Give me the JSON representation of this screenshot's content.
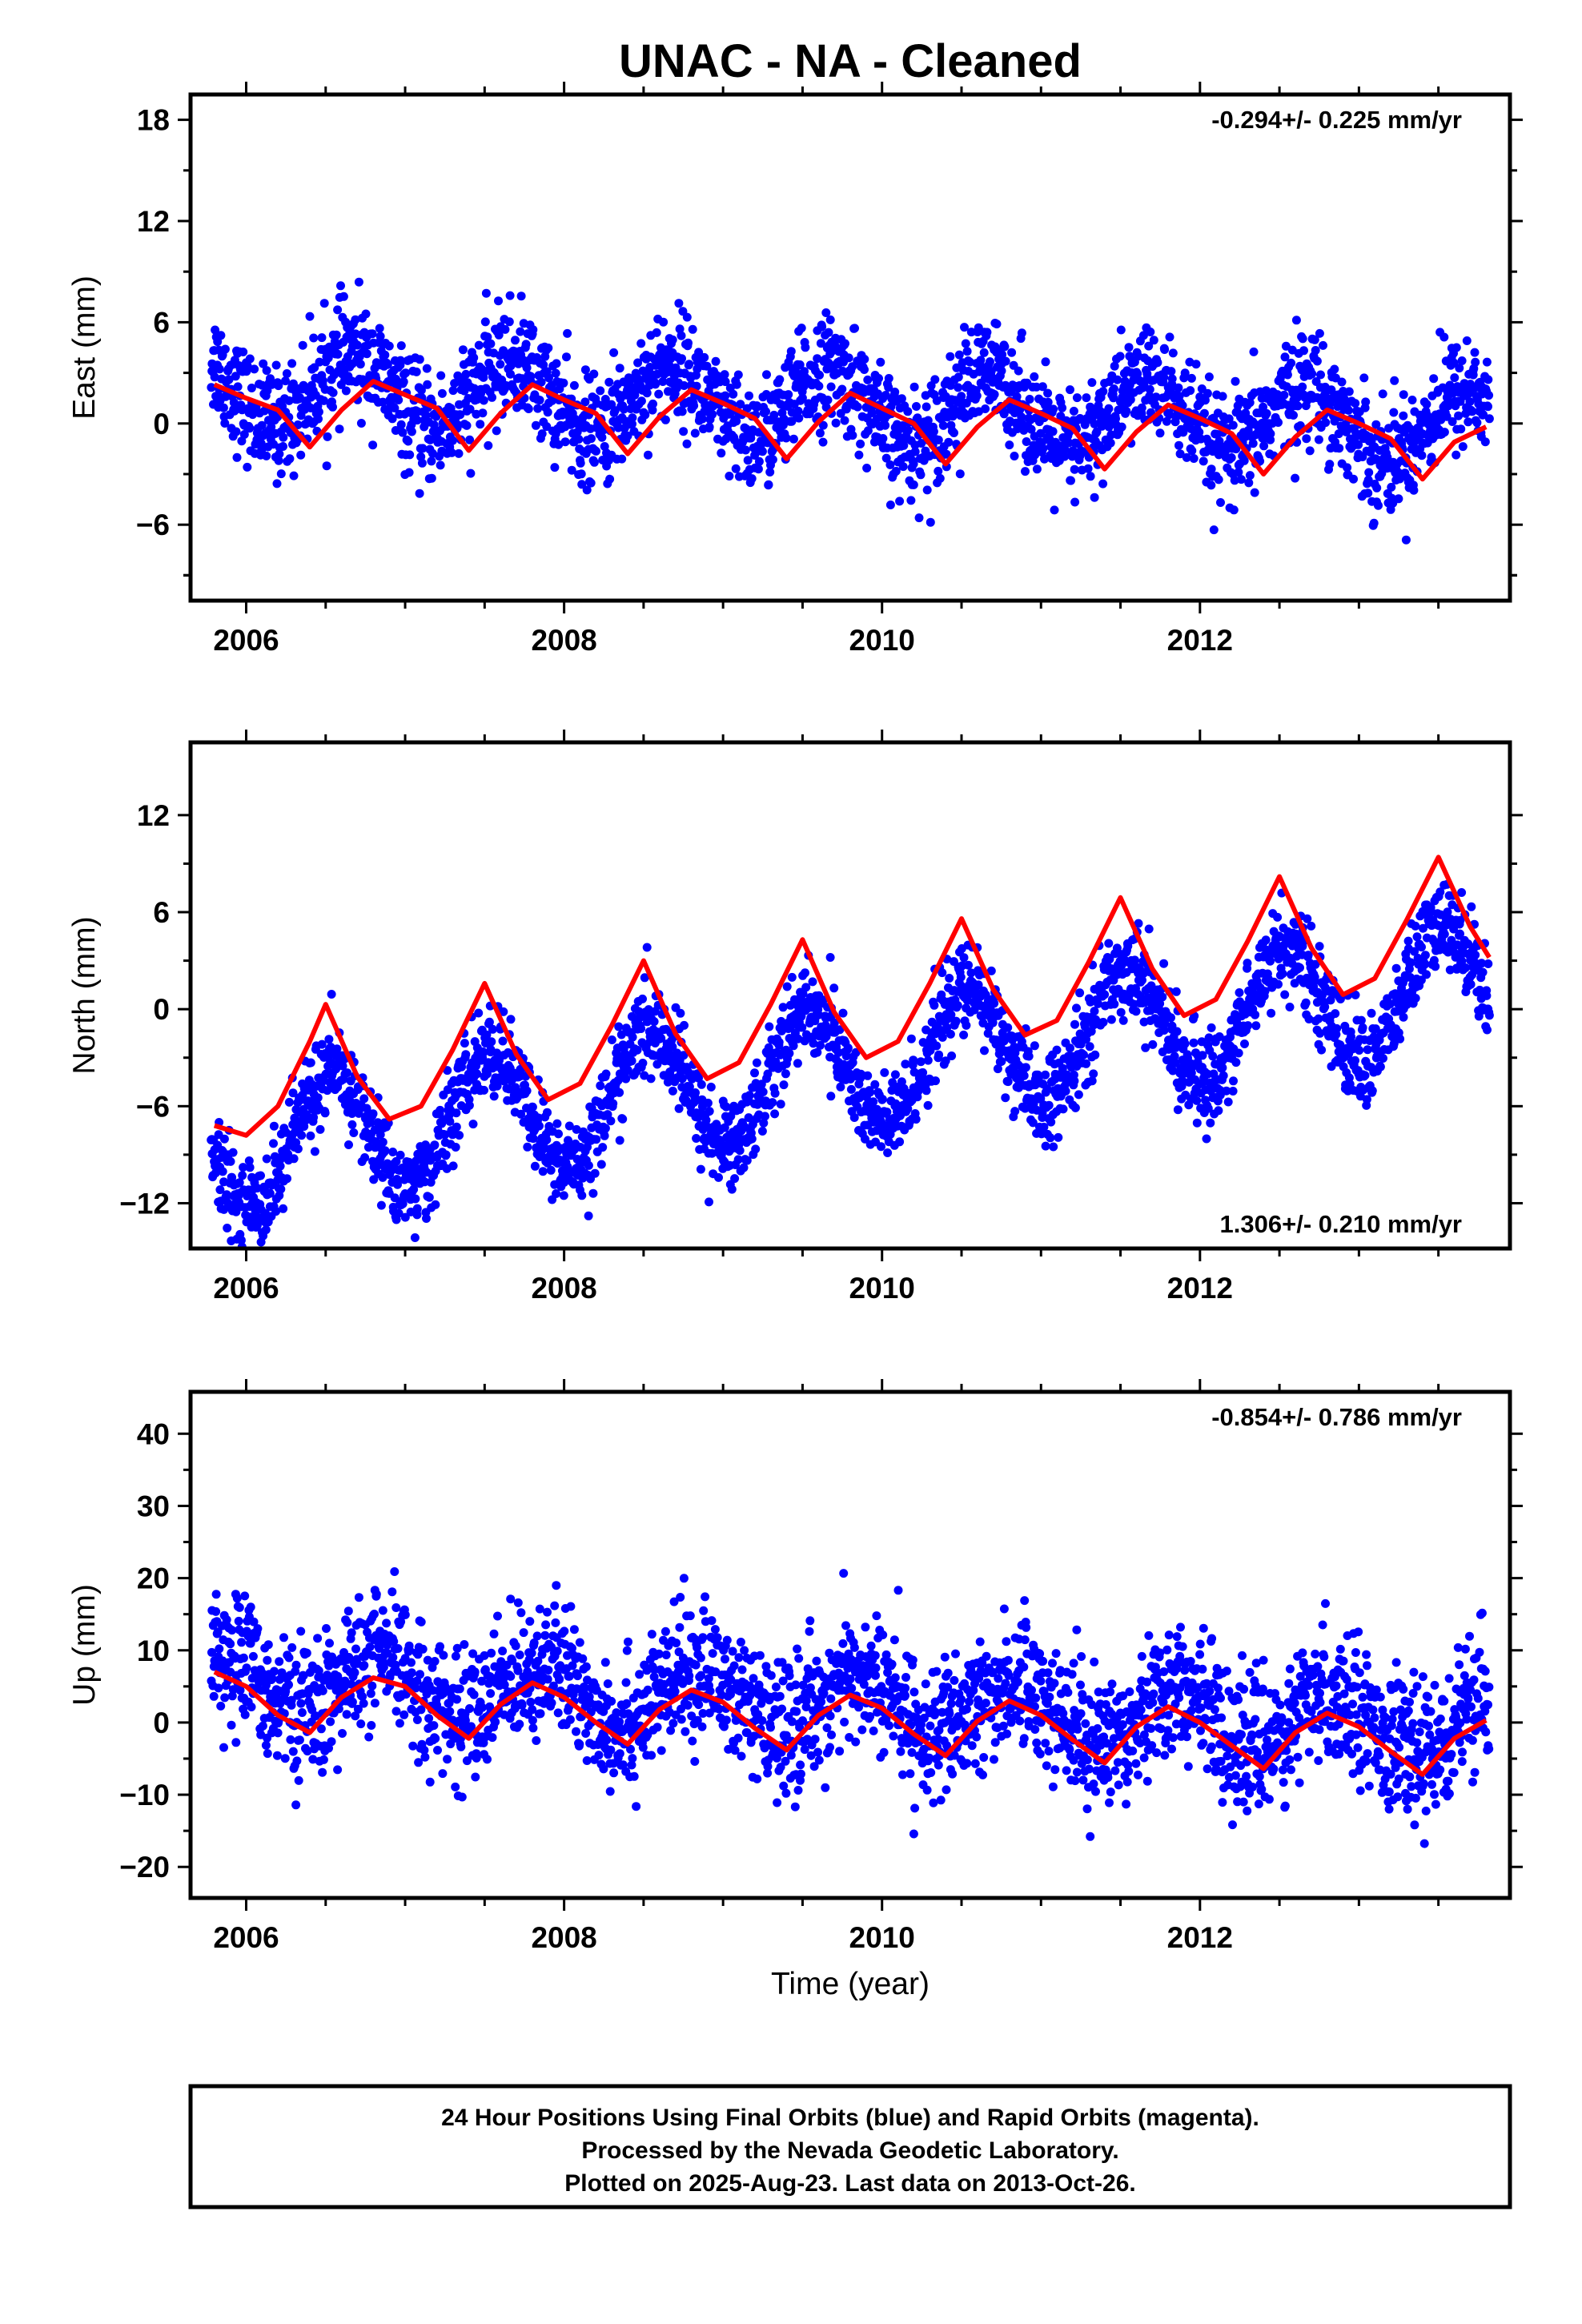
{
  "title": "UNAC  - NA - Cleaned",
  "footer": {
    "line1": "24 Hour Positions Using Final Orbits (blue) and Rapid Orbits (magenta).",
    "line2": "Processed by the Nevada Geodetic Laboratory.",
    "line3": "Plotted on 2025-Aug-23. Last data on 2013-Oct-26."
  },
  "colors": {
    "points": "#0000ff",
    "fit": "#ff0000",
    "frame": "#000000",
    "background": "#ffffff"
  },
  "chart_data": [
    {
      "type": "scatter",
      "ylabel": "East (mm)",
      "xlabel": "",
      "xlim": [
        2005.65,
        2013.95
      ],
      "ylim": [
        -10.5,
        19.5
      ],
      "xticks": [
        2006,
        2008,
        2010,
        2012
      ],
      "xtick_labels": [
        "2006",
        "2008",
        "2010",
        "2012"
      ],
      "yticks": [
        -6,
        0,
        6,
        12,
        18
      ],
      "ytick_labels": [
        "−6",
        "0",
        "6",
        "12",
        "18"
      ],
      "rate_label": "-0.294+/- 0.225 mm/yr",
      "rate_position": "top-right",
      "series": [
        {
          "kind": "daily-positions",
          "x_start": 2005.78,
          "x_end": 2013.82,
          "trend_intercept_mm": 1.0,
          "rate_mm_per_yr": -0.294,
          "annual_amplitude_mm": 2.1,
          "annual_phase_year_offset": 0.67,
          "scatter_std_mm": 1.6
        },
        {
          "kind": "fit",
          "x": [
            2005.8,
            2006.0,
            2006.2,
            2006.4,
            2006.6,
            2006.8,
            2007.0,
            2007.2,
            2007.4,
            2007.6,
            2007.8,
            2008.0,
            2008.2,
            2008.4,
            2008.6,
            2008.8,
            2009.0,
            2009.2,
            2009.4,
            2009.6,
            2009.8,
            2010.0,
            2010.2,
            2010.4,
            2010.6,
            2010.8,
            2011.0,
            2011.2,
            2011.4,
            2011.6,
            2011.8,
            2012.0,
            2012.2,
            2012.4,
            2012.6,
            2012.8,
            2013.0,
            2013.2,
            2013.4,
            2013.6,
            2013.8
          ],
          "y": [
            2.3,
            1.5,
            0.8,
            -1.4,
            0.8,
            2.5,
            1.7,
            0.9,
            -1.6,
            0.6,
            2.3,
            1.4,
            0.6,
            -1.8,
            0.4,
            2.0,
            1.2,
            0.3,
            -2.1,
            0.1,
            1.8,
            0.9,
            0.0,
            -2.4,
            -0.2,
            1.4,
            0.6,
            -0.3,
            -2.7,
            -0.5,
            1.1,
            0.3,
            -0.6,
            -3.0,
            -0.8,
            0.8,
            0.0,
            -0.9,
            -3.3,
            -1.1,
            -0.2
          ]
        }
      ]
    },
    {
      "type": "scatter",
      "ylabel": "North (mm)",
      "xlabel": "",
      "xlim": [
        2005.65,
        2013.95
      ],
      "ylim": [
        -14.8,
        16.5
      ],
      "xticks": [
        2006,
        2008,
        2010,
        2012
      ],
      "xtick_labels": [
        "2006",
        "2008",
        "2010",
        "2012"
      ],
      "yticks": [
        -12,
        -6,
        0,
        6,
        12
      ],
      "ytick_labels": [
        "−12",
        "−6",
        "0",
        "6",
        "12"
      ],
      "rate_label": "1.306+/- 0.210 mm/yr",
      "rate_position": "bottom-right",
      "series": [
        {
          "kind": "daily-positions",
          "x_start": 2005.78,
          "x_end": 2013.82,
          "trend_intercept_mm": -3.6,
          "rate_mm_per_yr": 1.306,
          "annual_amplitude_mm": 3.8,
          "annual_phase_year_offset": 0.53,
          "scatter_std_mm": 1.4
        },
        {
          "kind": "fit",
          "x": [
            2005.8,
            2006.0,
            2006.2,
            2006.4,
            2006.5,
            2006.7,
            2006.9,
            2007.1,
            2007.3,
            2007.5,
            2007.7,
            2007.9,
            2008.1,
            2008.3,
            2008.5,
            2008.7,
            2008.9,
            2009.1,
            2009.3,
            2009.5,
            2009.7,
            2009.9,
            2010.1,
            2010.3,
            2010.5,
            2010.7,
            2010.9,
            2011.1,
            2011.3,
            2011.5,
            2011.7,
            2011.9,
            2012.1,
            2012.3,
            2012.5,
            2012.7,
            2012.9,
            2013.1,
            2013.3,
            2013.5,
            2013.7,
            2013.82
          ],
          "y": [
            -7.2,
            -7.8,
            -6.0,
            -2.0,
            0.3,
            -4.2,
            -6.8,
            -6.0,
            -2.5,
            1.6,
            -2.8,
            -5.6,
            -4.6,
            -1.0,
            3.0,
            -1.5,
            -4.3,
            -3.3,
            0.3,
            4.3,
            -0.2,
            -3.0,
            -2.0,
            1.6,
            5.6,
            1.2,
            -1.6,
            -0.7,
            2.9,
            6.9,
            2.5,
            -0.4,
            0.6,
            4.2,
            8.2,
            3.8,
            0.9,
            1.9,
            5.5,
            9.4,
            5.1,
            3.2
          ]
        }
      ]
    },
    {
      "type": "scatter",
      "ylabel": "Up (mm)",
      "xlabel": "Time (year)",
      "xlim": [
        2005.65,
        2013.95
      ],
      "ylim": [
        -24.3,
        45.8
      ],
      "xticks": [
        2006,
        2008,
        2010,
        2012
      ],
      "xtick_labels": [
        "2006",
        "2008",
        "2010",
        "2012"
      ],
      "yticks": [
        -20,
        -10,
        0,
        10,
        20,
        30,
        40
      ],
      "ytick_labels": [
        "−20",
        "−10",
        "0",
        "10",
        "20",
        "30",
        "40"
      ],
      "rate_label": "-0.854+/- 0.786 mm/yr",
      "rate_position": "top-right",
      "series": [
        {
          "kind": "daily-positions",
          "x_start": 2005.78,
          "x_end": 2013.82,
          "trend_intercept_mm": 2.5,
          "rate_mm_per_yr": -0.854,
          "annual_amplitude_mm": 3.9,
          "annual_phase_year_offset": 0.85,
          "scatter_std_mm": 4.5
        },
        {
          "kind": "fit",
          "x": [
            2005.8,
            2006.0,
            2006.2,
            2006.4,
            2006.6,
            2006.8,
            2007.0,
            2007.2,
            2007.4,
            2007.6,
            2007.8,
            2008.0,
            2008.2,
            2008.4,
            2008.6,
            2008.8,
            2009.0,
            2009.2,
            2009.4,
            2009.6,
            2009.8,
            2010.0,
            2010.2,
            2010.4,
            2010.6,
            2010.8,
            2011.0,
            2011.2,
            2011.4,
            2011.6,
            2011.8,
            2012.0,
            2012.2,
            2012.4,
            2012.6,
            2012.8,
            2013.0,
            2013.2,
            2013.4,
            2013.6,
            2013.8
          ],
          "y": [
            7.0,
            5.0,
            1.0,
            -1.4,
            3.5,
            6.2,
            5.0,
            1.0,
            -2.2,
            2.5,
            5.5,
            3.5,
            0.0,
            -3.0,
            1.8,
            4.5,
            2.8,
            -0.8,
            -3.8,
            1.0,
            3.8,
            2.0,
            -1.6,
            -4.6,
            0.2,
            3.0,
            1.0,
            -2.4,
            -5.6,
            -0.6,
            2.2,
            0.0,
            -3.2,
            -6.4,
            -1.4,
            1.3,
            -0.6,
            -4.0,
            -7.2,
            -2.2,
            0.3
          ]
        }
      ]
    }
  ]
}
